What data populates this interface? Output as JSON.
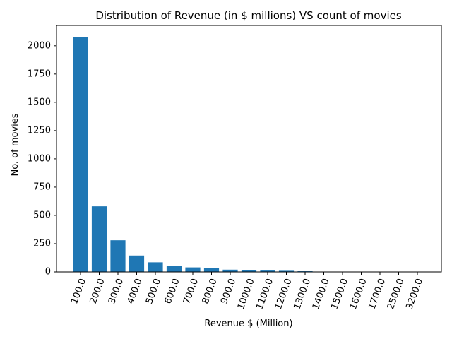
{
  "chart_data": {
    "type": "bar",
    "title": "Distribution of Revenue (in $ millions) VS count of movies",
    "xlabel": "Revenue $ (Million)",
    "ylabel": "No. of movies",
    "categories": [
      "100.0",
      "200.0",
      "300.0",
      "400.0",
      "500.0",
      "600.0",
      "700.0",
      "800.0",
      "900.0",
      "1000.0",
      "1100.0",
      "1200.0",
      "1300.0",
      "1400.0",
      "1500.0",
      "1600.0",
      "1700.0",
      "2500.0",
      "3200.0"
    ],
    "values": [
      2075,
      580,
      280,
      145,
      85,
      52,
      40,
      33,
      20,
      15,
      12,
      10,
      6,
      2,
      1,
      1,
      1,
      1,
      1
    ],
    "ylim": [
      0,
      2180
    ],
    "yticks": [
      0,
      250,
      500,
      750,
      1000,
      1250,
      1500,
      1750,
      2000
    ],
    "ytick_labels": [
      "0",
      "250",
      "500",
      "750",
      "1000",
      "1250",
      "1500",
      "1750",
      "2000"
    ],
    "bar_color": "#1f77b4",
    "grid": false,
    "legend": "none"
  }
}
